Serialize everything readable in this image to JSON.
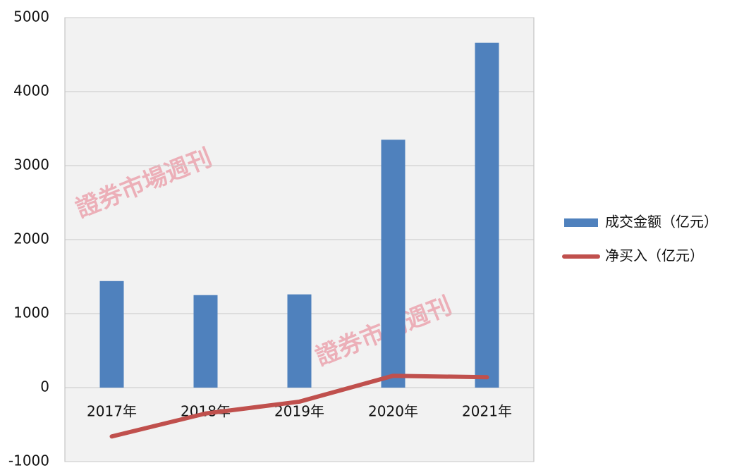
{
  "chart_data": {
    "type": "combo",
    "categories": [
      "2017年",
      "2018年",
      "2019年",
      "2020年",
      "2021年"
    ],
    "series": [
      {
        "name": "成交金额（亿元）",
        "type": "bar",
        "color": "#4f81bd",
        "values": [
          1440,
          1250,
          1260,
          3350,
          4660
        ]
      },
      {
        "name": "净买入（亿元）",
        "type": "line",
        "color": "#c0504d",
        "values": [
          -660,
          -350,
          -190,
          160,
          140
        ]
      }
    ],
    "ylim": [
      -1000,
      5000
    ],
    "yticks": [
      -1000,
      0,
      1000,
      2000,
      3000,
      4000,
      5000
    ],
    "grid": true,
    "legend": "right",
    "watermark": "證券市場週刊"
  }
}
